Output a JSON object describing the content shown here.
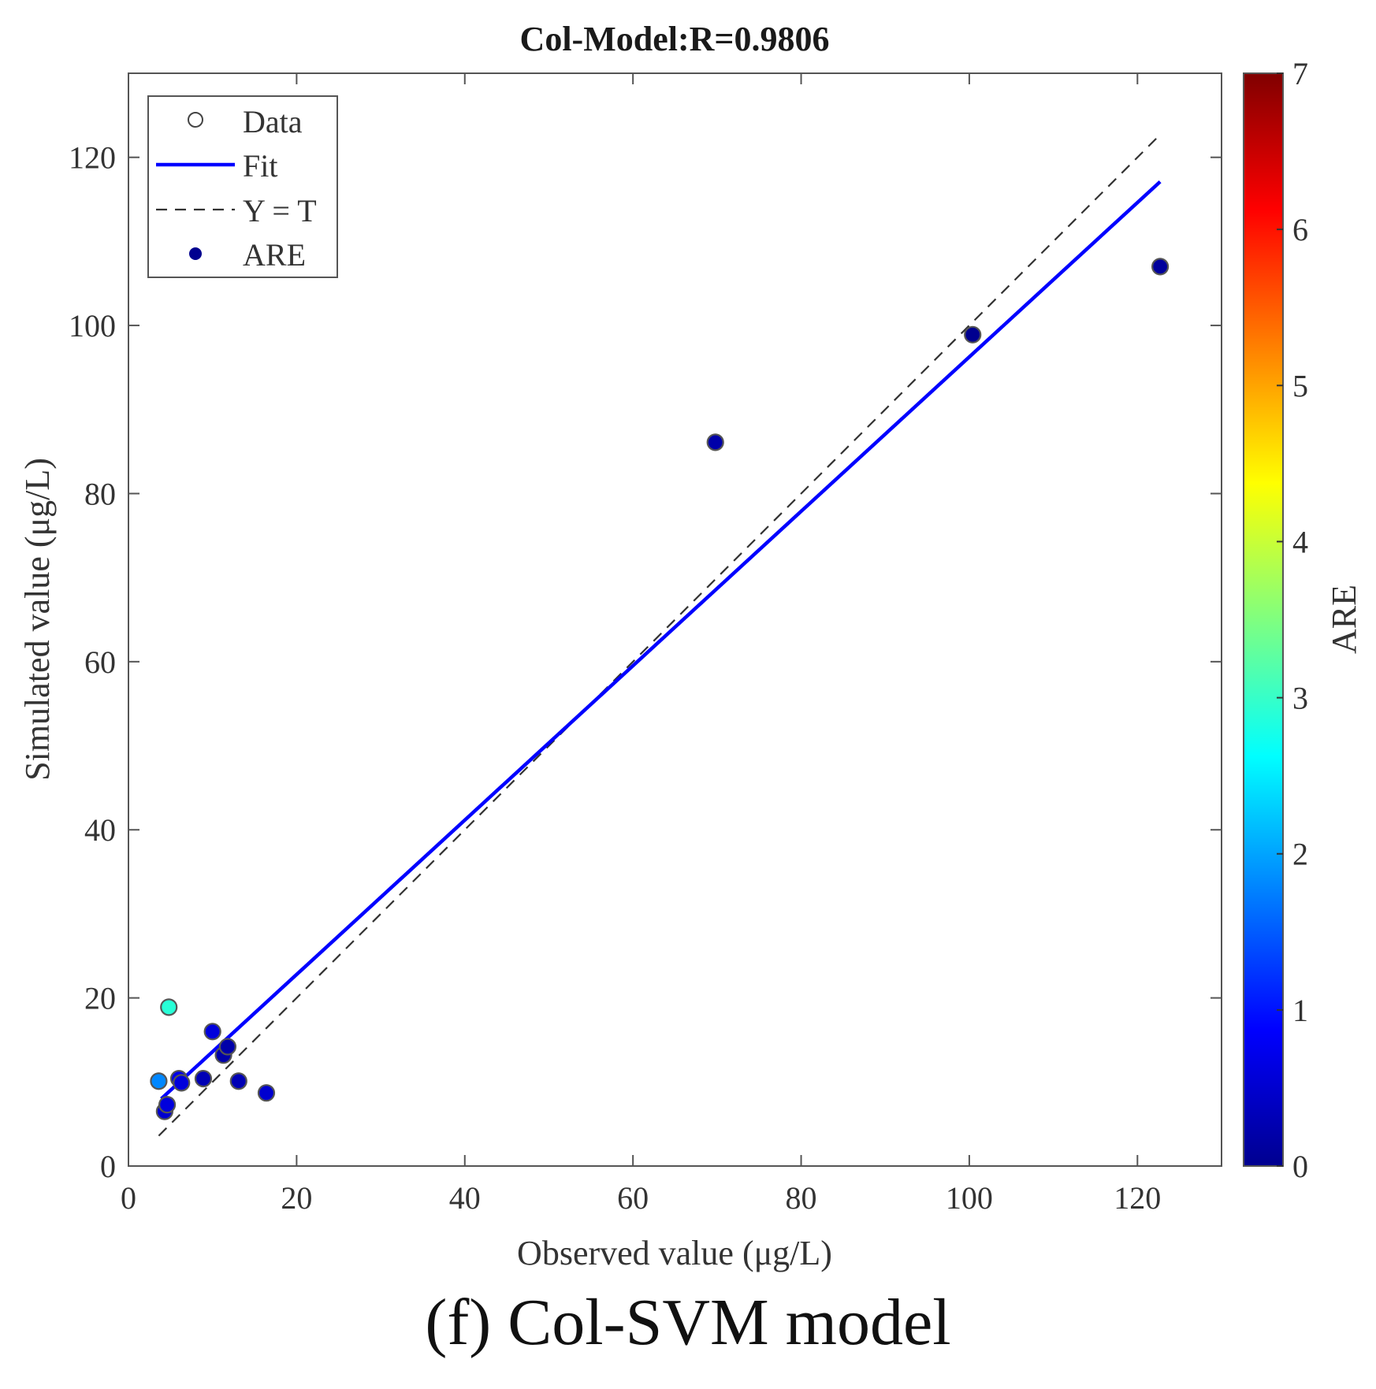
{
  "chart_data": {
    "type": "scatter",
    "title": "Col-Model:R=0.9806",
    "xlabel": "Observed value (μg/L)",
    "ylabel": "Simulated value (μg/L)",
    "xlim": [
      0,
      130
    ],
    "ylim": [
      0,
      130
    ],
    "xticks": [
      0,
      20,
      40,
      60,
      80,
      100,
      120
    ],
    "yticks": [
      0,
      20,
      40,
      60,
      80,
      100,
      120
    ],
    "grid": false,
    "legend_position": "top-left",
    "legend": [
      {
        "name": "Data",
        "marker": "open-circle"
      },
      {
        "name": "Fit",
        "marker": "solid-line",
        "color": "#0000ff"
      },
      {
        "name": "Y = T",
        "marker": "dashed-line",
        "color": "#333333"
      },
      {
        "name": "ARE",
        "marker": "filled-dot",
        "color": "#00008f"
      }
    ],
    "points": [
      {
        "x": 3.6,
        "y": 10.1,
        "are": 1.8
      },
      {
        "x": 4.3,
        "y": 6.5,
        "are": 0.5
      },
      {
        "x": 4.6,
        "y": 7.3,
        "are": 0.6
      },
      {
        "x": 4.8,
        "y": 18.9,
        "are": 2.9
      },
      {
        "x": 6.0,
        "y": 10.4,
        "are": 0.7
      },
      {
        "x": 6.3,
        "y": 9.9,
        "are": 0.6
      },
      {
        "x": 8.9,
        "y": 10.4,
        "are": 0.3
      },
      {
        "x": 10.0,
        "y": 16.0,
        "are": 0.6
      },
      {
        "x": 11.3,
        "y": 13.2,
        "are": 0.2
      },
      {
        "x": 11.8,
        "y": 14.2,
        "are": 0.2
      },
      {
        "x": 13.1,
        "y": 10.1,
        "are": 0.3
      },
      {
        "x": 16.4,
        "y": 8.7,
        "are": 0.5
      },
      {
        "x": 69.8,
        "y": 86.1,
        "are": 0.2
      },
      {
        "x": 100.4,
        "y": 98.9,
        "are": 0.0
      },
      {
        "x": 122.7,
        "y": 107.0,
        "are": 0.1
      }
    ],
    "fit_line": {
      "x": [
        3.9,
        122.7
      ],
      "y": [
        8.0,
        117.1
      ]
    },
    "identity_line": {
      "x": [
        3.6,
        122.7
      ],
      "y": [
        3.6,
        122.7
      ]
    },
    "colorbar": {
      "label": "ARE",
      "min": 0,
      "max": 7,
      "ticks": [
        0,
        1,
        2,
        3,
        4,
        5,
        6,
        7
      ],
      "colormap": "jet"
    }
  },
  "caption": "(f) Col-SVM model",
  "colors": {
    "fit": "#0000ff",
    "identity": "#333333",
    "axis": "#555555"
  }
}
